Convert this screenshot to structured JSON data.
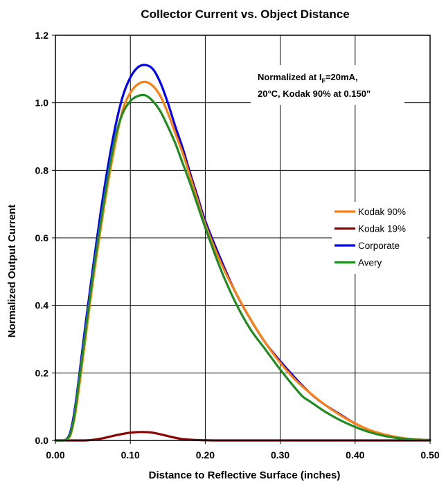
{
  "chart_data": {
    "type": "line",
    "title": "Collector Current vs. Object Distance",
    "xlabel": "Distance to Reflective Surface (inches)",
    "ylabel": "Normalized Output Current",
    "xlim": [
      0,
      0.5
    ],
    "ylim": [
      0,
      1.2
    ],
    "x_ticks": [
      "0.00",
      "0.10",
      "0.20",
      "0.30",
      "0.40",
      "0.50"
    ],
    "y_ticks": [
      "0.0",
      "0.2",
      "0.4",
      "0.6",
      "0.8",
      "1.0",
      "1.2"
    ],
    "grid": true,
    "legend_position": "right",
    "annotation": {
      "line1_prefix": "Normalized at I",
      "line1_subscript": "F",
      "line1_suffix": "=20mA,",
      "line2": "20°C, Kodak 90% at 0.150\""
    },
    "series": [
      {
        "name": "Kodak 90%",
        "color": "#FF7F0E",
        "points": [
          [
            0,
            0
          ],
          [
            0.01,
            0
          ],
          [
            0.015,
            0.003
          ],
          [
            0.02,
            0.015
          ],
          [
            0.025,
            0.06
          ],
          [
            0.03,
            0.13
          ],
          [
            0.04,
            0.3
          ],
          [
            0.05,
            0.47
          ],
          [
            0.06,
            0.62
          ],
          [
            0.07,
            0.76
          ],
          [
            0.08,
            0.88
          ],
          [
            0.09,
            0.98
          ],
          [
            0.1,
            1.03
          ],
          [
            0.11,
            1.055
          ],
          [
            0.12,
            1.062
          ],
          [
            0.13,
            1.05
          ],
          [
            0.14,
            1.02
          ],
          [
            0.15,
            0.97
          ],
          [
            0.16,
            0.91
          ],
          [
            0.17,
            0.85
          ],
          [
            0.18,
            0.78
          ],
          [
            0.19,
            0.71
          ],
          [
            0.2,
            0.64
          ],
          [
            0.22,
            0.53
          ],
          [
            0.24,
            0.44
          ],
          [
            0.26,
            0.36
          ],
          [
            0.28,
            0.29
          ],
          [
            0.3,
            0.23
          ],
          [
            0.32,
            0.18
          ],
          [
            0.34,
            0.14
          ],
          [
            0.36,
            0.105
          ],
          [
            0.38,
            0.075
          ],
          [
            0.4,
            0.05
          ],
          [
            0.42,
            0.03
          ],
          [
            0.44,
            0.017
          ],
          [
            0.46,
            0.008
          ],
          [
            0.48,
            0.003
          ],
          [
            0.5,
            0.001
          ]
        ]
      },
      {
        "name": "Kodak 19%",
        "color": "#8B0000",
        "points": [
          [
            0,
            0
          ],
          [
            0.04,
            0
          ],
          [
            0.06,
            0.005
          ],
          [
            0.08,
            0.015
          ],
          [
            0.1,
            0.023
          ],
          [
            0.115,
            0.025
          ],
          [
            0.13,
            0.023
          ],
          [
            0.15,
            0.013
          ],
          [
            0.17,
            0.004
          ],
          [
            0.2,
            0.0005
          ],
          [
            0.25,
            0
          ],
          [
            0.5,
            0
          ]
        ]
      },
      {
        "name": "Corporate",
        "color": "#0000FF",
        "points": [
          [
            0,
            0
          ],
          [
            0.01,
            0
          ],
          [
            0.015,
            0.004
          ],
          [
            0.02,
            0.025
          ],
          [
            0.025,
            0.08
          ],
          [
            0.03,
            0.16
          ],
          [
            0.04,
            0.34
          ],
          [
            0.05,
            0.51
          ],
          [
            0.06,
            0.67
          ],
          [
            0.07,
            0.81
          ],
          [
            0.08,
            0.93
          ],
          [
            0.09,
            1.02
          ],
          [
            0.1,
            1.075
          ],
          [
            0.11,
            1.105
          ],
          [
            0.12,
            1.112
          ],
          [
            0.13,
            1.1
          ],
          [
            0.14,
            1.06
          ],
          [
            0.15,
            1.0
          ],
          [
            0.16,
            0.93
          ],
          [
            0.17,
            0.865
          ],
          [
            0.18,
            0.79
          ],
          [
            0.19,
            0.72
          ],
          [
            0.2,
            0.65
          ],
          [
            0.22,
            0.54
          ],
          [
            0.24,
            0.44
          ],
          [
            0.26,
            0.36
          ],
          [
            0.28,
            0.29
          ],
          [
            0.3,
            0.235
          ],
          [
            0.32,
            0.185
          ],
          [
            0.34,
            0.14
          ],
          [
            0.36,
            0.105
          ],
          [
            0.38,
            0.077
          ],
          [
            0.4,
            0.05
          ],
          [
            0.42,
            0.03
          ],
          [
            0.44,
            0.017
          ],
          [
            0.46,
            0.008
          ],
          [
            0.48,
            0.003
          ],
          [
            0.5,
            0.001
          ]
        ]
      },
      {
        "name": "Avery",
        "color": "#1E8C1E",
        "points": [
          [
            0,
            0
          ],
          [
            0.01,
            0
          ],
          [
            0.015,
            0.004
          ],
          [
            0.02,
            0.02
          ],
          [
            0.025,
            0.07
          ],
          [
            0.03,
            0.15
          ],
          [
            0.04,
            0.32
          ],
          [
            0.05,
            0.49
          ],
          [
            0.06,
            0.64
          ],
          [
            0.07,
            0.78
          ],
          [
            0.08,
            0.9
          ],
          [
            0.09,
            0.97
          ],
          [
            0.1,
            1.005
          ],
          [
            0.11,
            1.02
          ],
          [
            0.12,
            1.022
          ],
          [
            0.13,
            1.005
          ],
          [
            0.14,
            0.975
          ],
          [
            0.15,
            0.93
          ],
          [
            0.16,
            0.88
          ],
          [
            0.17,
            0.82
          ],
          [
            0.18,
            0.76
          ],
          [
            0.19,
            0.695
          ],
          [
            0.2,
            0.63
          ],
          [
            0.22,
            0.51
          ],
          [
            0.24,
            0.41
          ],
          [
            0.26,
            0.33
          ],
          [
            0.28,
            0.27
          ],
          [
            0.3,
            0.21
          ],
          [
            0.32,
            0.155
          ],
          [
            0.33,
            0.13
          ],
          [
            0.34,
            0.115
          ],
          [
            0.36,
            0.085
          ],
          [
            0.38,
            0.06
          ],
          [
            0.4,
            0.04
          ],
          [
            0.42,
            0.024
          ],
          [
            0.44,
            0.013
          ],
          [
            0.46,
            0.006
          ],
          [
            0.48,
            0.002
          ],
          [
            0.5,
            0.001
          ]
        ]
      }
    ]
  }
}
